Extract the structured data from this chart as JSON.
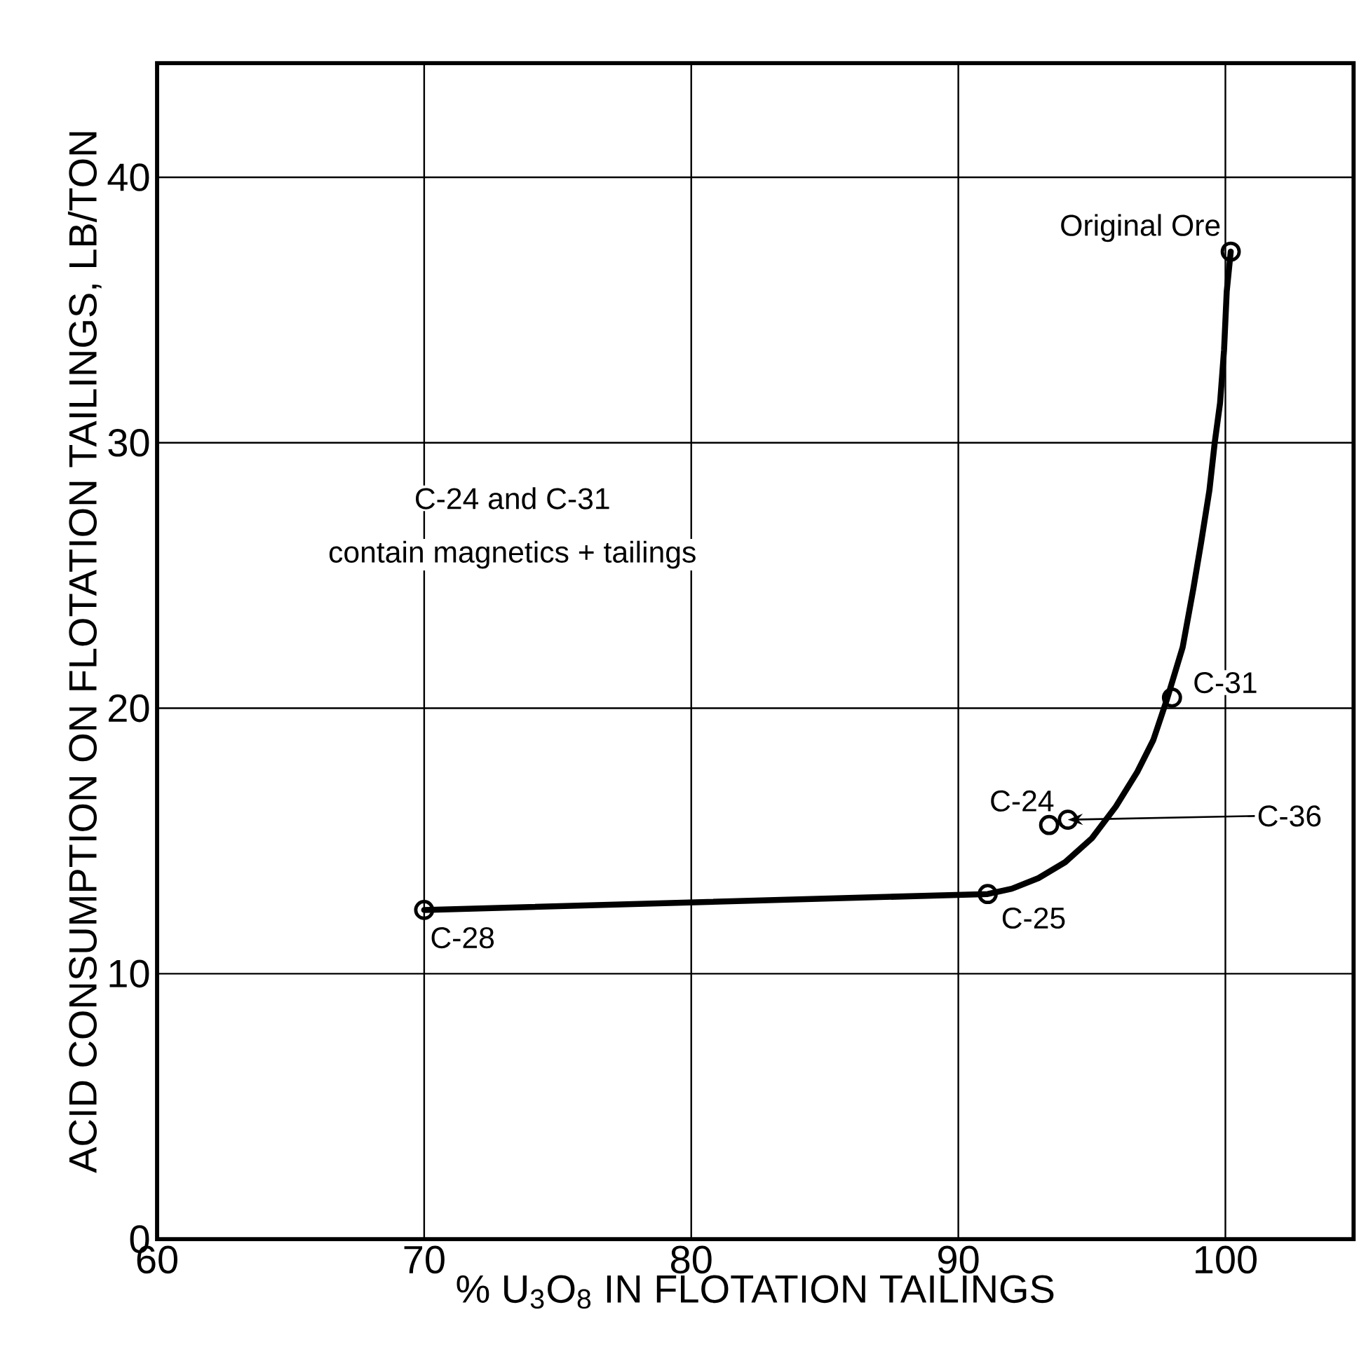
{
  "chart_data": {
    "type": "line",
    "xlabel": "% U$_{3}$O$_{8}$ IN FLOTATION TAILINGS",
    "ylabel": "ACID CONSUMPTION ON FLOTATION TAILINGS, LB/TON",
    "xlim": [
      60,
      104.8
    ],
    "ylim": [
      0,
      44.3
    ],
    "xticks": [
      60,
      70,
      80,
      90,
      100
    ],
    "yticks": [
      0,
      10,
      20,
      30,
      40
    ],
    "grid": true,
    "series": [
      {
        "color": "#000000",
        "marker": "none",
        "line_style": "solid",
        "x": [
          70,
          91.1,
          92.0,
          93.0,
          94.0,
          95.0,
          95.9,
          96.7,
          97.3,
          97.8,
          98.4,
          98.8,
          99.1,
          99.4,
          99.6,
          99.8,
          99.95,
          100.05,
          100.2
        ],
        "values": [
          12.4,
          13.0,
          13.2,
          13.6,
          14.2,
          15.1,
          16.3,
          17.6,
          18.8,
          20.3,
          22.3,
          24.5,
          26.3,
          28.2,
          30.0,
          31.5,
          33.5,
          35.7,
          37.2
        ]
      },
      {
        "type": "scatter",
        "color": "#000000",
        "marker": "circle",
        "x": [
          70,
          91.1,
          93.4,
          94.1,
          98.0,
          100.2
        ],
        "values": [
          12.4,
          13.0,
          15.6,
          15.8,
          20.4,
          37.2
        ]
      }
    ],
    "annotations": [
      {
        "text": "Original Ore",
        "x": 100.2,
        "y": 37.2
      },
      {
        "text": "C-31",
        "x": 98.0,
        "y": 20.4
      },
      {
        "text": "C-24",
        "x": 93.4,
        "y": 15.6
      },
      {
        "text": "C-36",
        "x": 94.1,
        "y": 15.8
      },
      {
        "text": "C-25",
        "x": 91.1,
        "y": 13.0
      },
      {
        "text": "C-28",
        "x": 70,
        "y": 12.4
      },
      "C-24 and C-31",
      "contain magnetics + tailings"
    ]
  }
}
